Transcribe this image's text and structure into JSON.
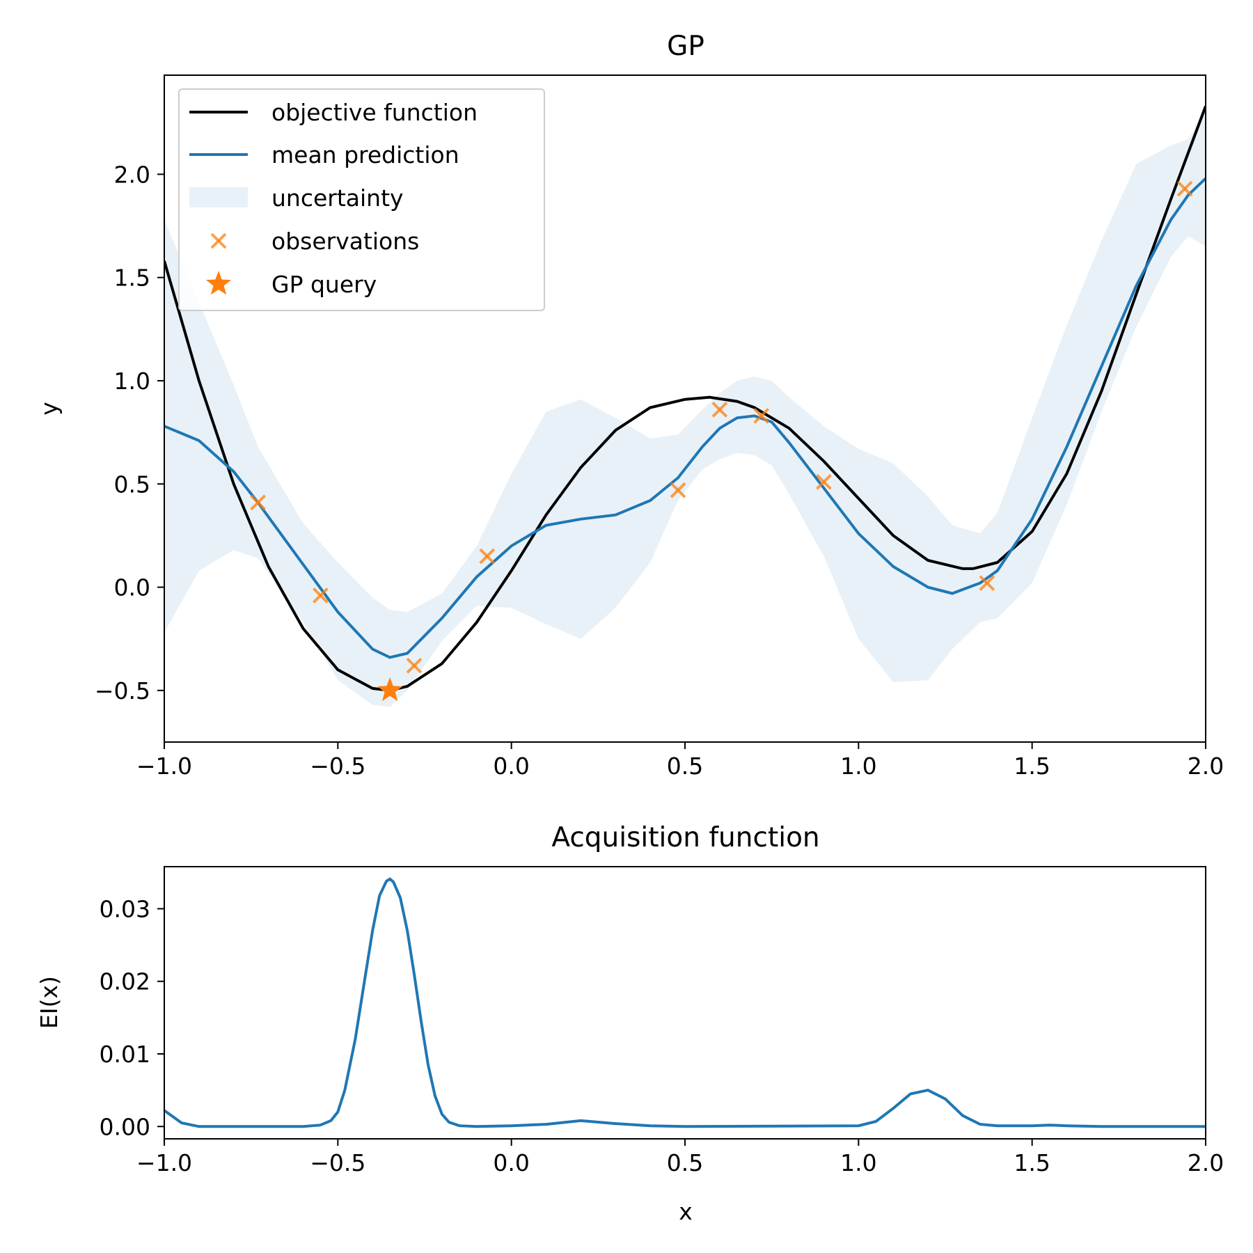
{
  "chart_data": [
    {
      "type": "line",
      "title": "GP",
      "xlabel": "",
      "ylabel": "y",
      "xlim": [
        -1.0,
        2.0
      ],
      "ylim": [
        -0.75,
        2.48
      ],
      "xticks": [
        "−1.0",
        "−0.5",
        "0.0",
        "0.5",
        "1.0",
        "1.5",
        "2.0"
      ],
      "xtick_values": [
        -1.0,
        -0.5,
        0.0,
        0.5,
        1.0,
        1.5,
        2.0
      ],
      "yticks": [
        "−0.5",
        "0.0",
        "0.5",
        "1.0",
        "1.5",
        "2.0"
      ],
      "ytick_values": [
        -0.5,
        0.0,
        0.5,
        1.0,
        1.5,
        2.0
      ],
      "grid": false,
      "legend_position": "top-left",
      "legend": {
        "objective": "objective function",
        "mean": "mean prediction",
        "uncertainty": "uncertainty",
        "observations": "observations",
        "query": "GP query"
      },
      "colors": {
        "objective": "#000000",
        "mean": "#1f77b4",
        "uncertainty": "#1f77b4",
        "observations": "#ff7f0e",
        "query": "#ff7f0e"
      },
      "series": [
        {
          "name": "objective function",
          "x": [
            -1.0,
            -0.9,
            -0.8,
            -0.7,
            -0.6,
            -0.5,
            -0.4,
            -0.35,
            -0.3,
            -0.2,
            -0.1,
            0.0,
            0.1,
            0.2,
            0.3,
            0.4,
            0.5,
            0.57,
            0.65,
            0.7,
            0.8,
            0.9,
            1.0,
            1.1,
            1.2,
            1.3,
            1.33,
            1.4,
            1.5,
            1.6,
            1.7,
            1.8,
            1.9,
            2.0
          ],
          "y": [
            1.58,
            1.0,
            0.5,
            0.1,
            -0.2,
            -0.4,
            -0.49,
            -0.5,
            -0.48,
            -0.37,
            -0.17,
            0.08,
            0.35,
            0.58,
            0.76,
            0.87,
            0.91,
            0.92,
            0.9,
            0.87,
            0.77,
            0.61,
            0.43,
            0.25,
            0.13,
            0.09,
            0.09,
            0.12,
            0.27,
            0.55,
            0.95,
            1.42,
            1.88,
            2.33
          ]
        },
        {
          "name": "mean prediction",
          "x": [
            -1.0,
            -0.9,
            -0.8,
            -0.73,
            -0.6,
            -0.5,
            -0.4,
            -0.35,
            -0.3,
            -0.2,
            -0.1,
            0.0,
            0.1,
            0.2,
            0.3,
            0.4,
            0.48,
            0.55,
            0.6,
            0.65,
            0.7,
            0.75,
            0.8,
            0.9,
            1.0,
            1.1,
            1.2,
            1.27,
            1.35,
            1.4,
            1.5,
            1.6,
            1.7,
            1.8,
            1.9,
            1.95,
            2.0
          ],
          "y": [
            0.78,
            0.71,
            0.56,
            0.41,
            0.11,
            -0.12,
            -0.3,
            -0.34,
            -0.32,
            -0.15,
            0.05,
            0.2,
            0.3,
            0.33,
            0.35,
            0.42,
            0.53,
            0.68,
            0.77,
            0.82,
            0.83,
            0.8,
            0.7,
            0.48,
            0.26,
            0.1,
            0.0,
            -0.03,
            0.02,
            0.08,
            0.33,
            0.68,
            1.07,
            1.46,
            1.78,
            1.9,
            1.98
          ]
        },
        {
          "name": "uncertainty",
          "x": [
            -1.0,
            -0.9,
            -0.8,
            -0.73,
            -0.6,
            -0.5,
            -0.4,
            -0.35,
            -0.3,
            -0.2,
            -0.1,
            0.0,
            0.1,
            0.2,
            0.3,
            0.4,
            0.48,
            0.55,
            0.6,
            0.65,
            0.7,
            0.75,
            0.8,
            0.9,
            1.0,
            1.1,
            1.2,
            1.27,
            1.35,
            1.4,
            1.5,
            1.6,
            1.7,
            1.8,
            1.9,
            1.95,
            2.0
          ],
          "lower": [
            -0.22,
            0.08,
            0.18,
            0.14,
            -0.17,
            -0.45,
            -0.57,
            -0.58,
            -0.5,
            -0.26,
            -0.09,
            -0.1,
            -0.18,
            -0.25,
            -0.1,
            0.12,
            0.42,
            0.57,
            0.62,
            0.65,
            0.64,
            0.59,
            0.45,
            0.15,
            -0.25,
            -0.46,
            -0.45,
            -0.3,
            -0.17,
            -0.15,
            0.02,
            0.4,
            0.85,
            1.26,
            1.6,
            1.7,
            1.65
          ],
          "upper": [
            1.78,
            1.38,
            0.98,
            0.68,
            0.31,
            0.12,
            -0.05,
            -0.11,
            -0.12,
            -0.03,
            0.2,
            0.55,
            0.85,
            0.91,
            0.82,
            0.72,
            0.74,
            0.86,
            0.94,
            1.0,
            1.02,
            1.0,
            0.92,
            0.78,
            0.67,
            0.6,
            0.44,
            0.3,
            0.26,
            0.36,
            0.82,
            1.27,
            1.68,
            2.05,
            2.14,
            2.17,
            2.3
          ]
        }
      ],
      "observations": {
        "name": "observations",
        "x": [
          -0.73,
          -0.55,
          -0.28,
          -0.07,
          0.48,
          0.6,
          0.72,
          0.9,
          1.37,
          1.94
        ],
        "y": [
          0.41,
          -0.04,
          -0.38,
          0.15,
          0.47,
          0.86,
          0.83,
          0.51,
          0.02,
          1.93
        ]
      },
      "query": {
        "name": "GP query",
        "x": -0.35,
        "y": -0.5
      }
    },
    {
      "type": "line",
      "title": "Acquisition function",
      "xlabel": "x",
      "ylabel": "EI(x)",
      "xlim": [
        -1.0,
        2.0
      ],
      "ylim": [
        -0.0017,
        0.0358
      ],
      "xticks": [
        "−1.0",
        "−0.5",
        "0.0",
        "0.5",
        "1.0",
        "1.5",
        "2.0"
      ],
      "xtick_values": [
        -1.0,
        -0.5,
        0.0,
        0.5,
        1.0,
        1.5,
        2.0
      ],
      "yticks": [
        "0.00",
        "0.01",
        "0.02",
        "0.03"
      ],
      "ytick_values": [
        0.0,
        0.01,
        0.02,
        0.03
      ],
      "grid": false,
      "colors": {
        "ei": "#1f77b4"
      },
      "series": [
        {
          "name": "",
          "x": [
            -1.0,
            -0.95,
            -0.9,
            -0.85,
            -0.6,
            -0.55,
            -0.52,
            -0.5,
            -0.48,
            -0.45,
            -0.42,
            -0.4,
            -0.38,
            -0.36,
            -0.35,
            -0.34,
            -0.32,
            -0.3,
            -0.28,
            -0.26,
            -0.24,
            -0.22,
            -0.2,
            -0.18,
            -0.15,
            -0.1,
            0.0,
            0.1,
            0.2,
            0.3,
            0.4,
            0.5,
            1.0,
            1.05,
            1.1,
            1.15,
            1.2,
            1.25,
            1.3,
            1.35,
            1.4,
            1.5,
            1.55,
            1.6,
            1.7,
            2.0
          ],
          "y": [
            0.0022,
            0.0005,
            0.0,
            0.0,
            0.0,
            0.0002,
            0.0008,
            0.002,
            0.005,
            0.012,
            0.021,
            0.027,
            0.0318,
            0.0338,
            0.0341,
            0.0337,
            0.0315,
            0.027,
            0.021,
            0.0145,
            0.0085,
            0.0042,
            0.0017,
            0.0006,
            0.0001,
            0.0,
            0.0001,
            0.0003,
            0.0008,
            0.0004,
            0.0001,
            0.0,
            0.0001,
            0.0007,
            0.0025,
            0.0045,
            0.005,
            0.0038,
            0.0015,
            0.0003,
            0.0001,
            0.0001,
            0.0002,
            0.0001,
            0.0,
            0.0
          ]
        }
      ]
    }
  ]
}
